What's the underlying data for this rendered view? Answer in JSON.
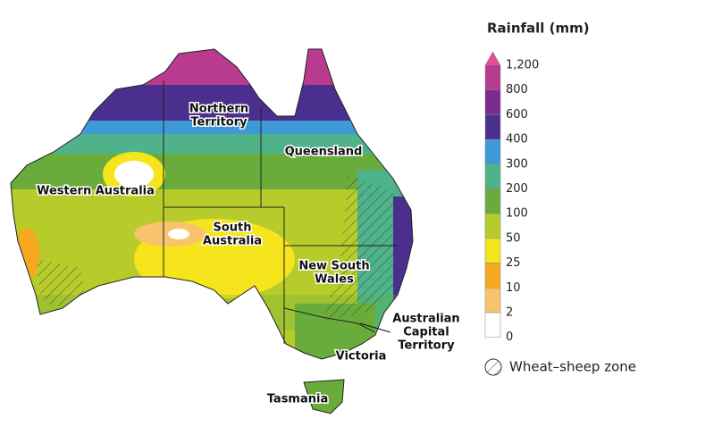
{
  "legend": {
    "title": "Rainfall (mm)",
    "labels": [
      "1,200",
      "800",
      "600",
      "400",
      "300",
      "200",
      "100",
      "50",
      "25",
      "10",
      "2",
      "0"
    ],
    "colors": [
      "#b83b8f",
      "#7c2b8e",
      "#4a2f8e",
      "#3d9ad6",
      "#4eb38a",
      "#6aac3b",
      "#b7cc2b",
      "#f6e51c",
      "#f6a81e",
      "#f8c36a",
      "#ffffff"
    ],
    "above_color": "#e0508f",
    "hatch_label": "Wheat–sheep zone"
  },
  "regions": [
    {
      "lines": [
        "Northern",
        "Territory"
      ]
    },
    {
      "lines": [
        "Queensland"
      ]
    },
    {
      "lines": [
        "Western Australia"
      ]
    },
    {
      "lines": [
        "South",
        "Australia"
      ]
    },
    {
      "lines": [
        "New South",
        "Wales"
      ]
    },
    {
      "lines": [
        "Australian",
        "Capital",
        "Territory"
      ]
    },
    {
      "lines": [
        "Victoria"
      ]
    },
    {
      "lines": [
        "Tasmania"
      ]
    }
  ]
}
